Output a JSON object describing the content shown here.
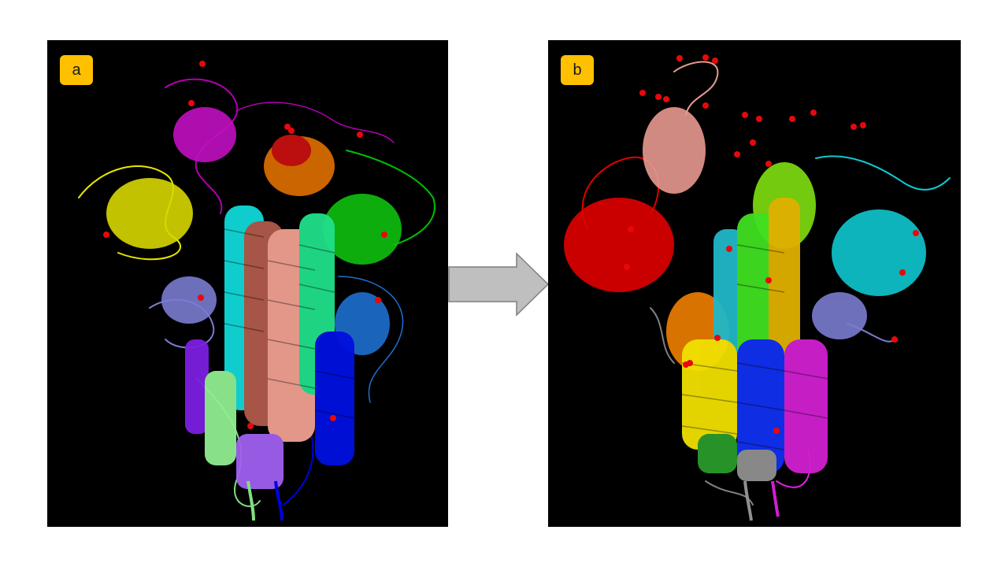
{
  "panels": {
    "a": {
      "label": "a"
    },
    "b": {
      "label": "b"
    }
  },
  "colors": {
    "badge": "#FFC000",
    "arrow_fill": "#BFBFBF",
    "arrow_stroke": "#7F7F7F",
    "background": "#000000",
    "atom": "#E8080A"
  },
  "icons": {
    "transition": "right-arrow-icon"
  }
}
